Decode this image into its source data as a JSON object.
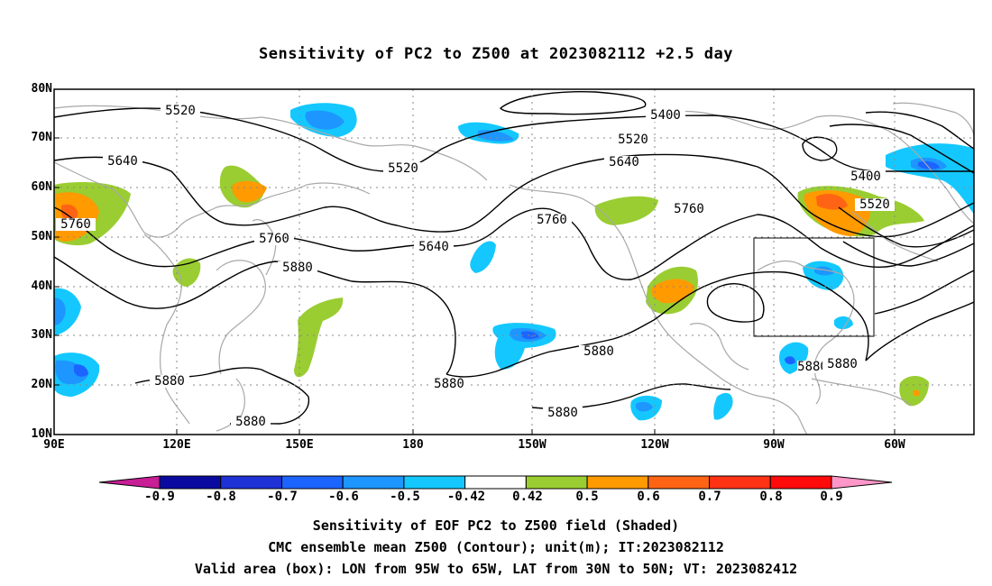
{
  "title": "Sensitivity of PC2 to Z500 at 2023082112 +2.5 day",
  "map": {
    "lat_labels": [
      "80N",
      "70N",
      "60N",
      "50N",
      "40N",
      "30N",
      "20N",
      "10N"
    ],
    "lon_labels": [
      "90E",
      "120E",
      "150E",
      "180",
      "150W",
      "120W",
      "90W",
      "60W"
    ],
    "contour_labels": [
      "5520",
      "5400",
      "5520",
      "5520",
      "5640",
      "5640",
      "5400",
      "5520",
      "5760",
      "5760",
      "5640",
      "5760",
      "5760",
      "5880",
      "5880",
      "5880",
      "5880",
      "5880",
      "5880",
      "5880",
      "5880"
    ],
    "valid_box": {
      "lon_min": -95,
      "lon_max": -65,
      "lat_min": 30,
      "lat_max": 50
    }
  },
  "colorbar": {
    "labels": [
      "-0.9",
      "-0.8",
      "-0.7",
      "-0.6",
      "-0.5",
      "-0.42",
      "0.42",
      "0.5",
      "0.6",
      "0.7",
      "0.8",
      "0.9"
    ],
    "colors": [
      "#0a0aa0",
      "#1e32d6",
      "#1c64ff",
      "#1e96ff",
      "#14c8ff",
      "#ffffff",
      "#9acd32",
      "#ff9a00",
      "#ff6414",
      "#ff3214",
      "#ff0a0a"
    ],
    "end_low_color": "#c81e96",
    "end_high_color": "#ff96c8"
  },
  "footer": {
    "line1": "Sensitivity of EOF PC2 to Z500 field (Shaded)",
    "line2": "CMC ensemble mean Z500 (Contour); unit(m); IT:2023082112",
    "line3": "Valid area (box): LON from 95W to 65W, LAT from 30N to 50N; VT: 2023082412"
  }
}
